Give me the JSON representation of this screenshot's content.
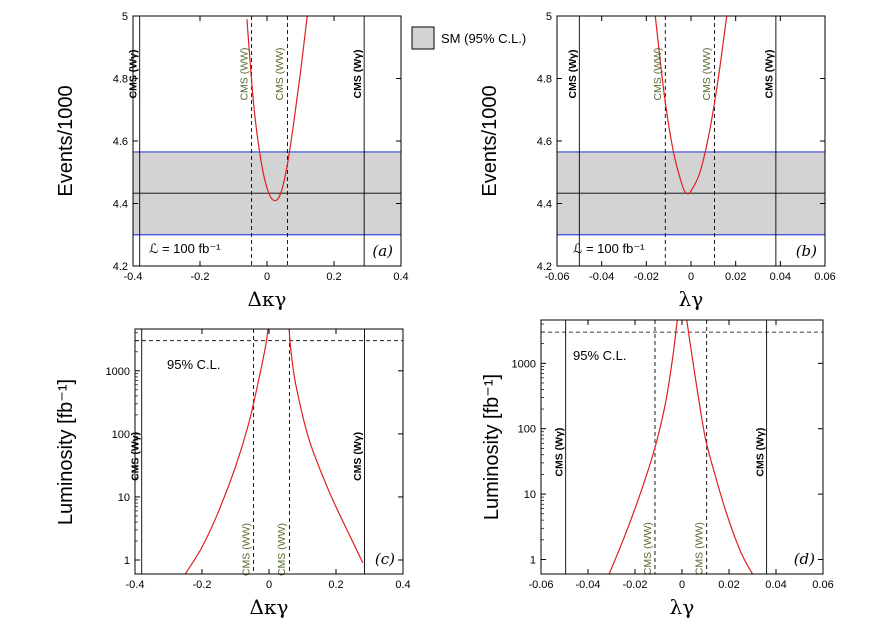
{
  "colors": {
    "band_fill": "#d3d3d3",
    "band_edge": "#3a46d6",
    "curve": "#e0201e",
    "ww_label": "#556b2f"
  },
  "legend": {
    "label": "SM (95% C.L.)"
  },
  "chart_data": [
    {
      "id": "a",
      "type": "line",
      "panel_label": "(a)",
      "xlabel": "Δκγ",
      "ylabel": "Events/1000",
      "xlim": [
        -0.4,
        0.4
      ],
      "ylim": [
        4.2,
        5.0
      ],
      "yscale": "linear",
      "xticks": [
        -0.4,
        -0.2,
        0,
        0.2,
        0.4
      ],
      "xtick_labels": [
        "-0.4",
        "-0.2",
        "0",
        "0.2",
        "0.4"
      ],
      "yticks": [
        4.2,
        4.4,
        4.6,
        4.8,
        5.0
      ],
      "ytick_labels": [
        "4.2",
        "4.4",
        "4.6",
        "4.8",
        "5"
      ],
      "sm_band": {
        "low": 4.3,
        "high": 4.565,
        "central": 4.433
      },
      "luminosity_label": "ℒ = 100 fb⁻¹",
      "series": [
        {
          "name": "events",
          "x": [
            -0.06,
            -0.04,
            -0.02,
            0.0,
            0.02,
            0.04,
            0.06,
            0.08,
            0.1,
            0.12
          ],
          "y": [
            4.99,
            4.72,
            4.55,
            4.45,
            4.41,
            4.43,
            4.52,
            4.66,
            4.82,
            5.0
          ]
        }
      ],
      "limit_lines": [
        {
          "x": -0.38,
          "label": "CMS (Wγ)",
          "kind": "wg"
        },
        {
          "x": -0.046,
          "label": "CMS (WW)",
          "kind": "ww"
        },
        {
          "x": 0.061,
          "label": "CMS (WW)",
          "kind": "ww"
        },
        {
          "x": 0.29,
          "label": "CMS (Wγ)",
          "kind": "wg"
        }
      ]
    },
    {
      "id": "b",
      "type": "line",
      "panel_label": "(b)",
      "xlabel": "λγ",
      "ylabel": "Events/1000",
      "xlim": [
        -0.06,
        0.06
      ],
      "ylim": [
        4.2,
        5.0
      ],
      "yscale": "linear",
      "xticks": [
        -0.06,
        -0.04,
        -0.02,
        0,
        0.02,
        0.04,
        0.06
      ],
      "xtick_labels": [
        "-0.06",
        "-0.04",
        "-0.02",
        "0",
        "0.02",
        "0.04",
        "0.06"
      ],
      "yticks": [
        4.2,
        4.4,
        4.6,
        4.8,
        5.0
      ],
      "ytick_labels": [
        "4.2",
        "4.4",
        "4.6",
        "4.8",
        "5"
      ],
      "sm_band": {
        "low": 4.3,
        "high": 4.565,
        "central": 4.433
      },
      "luminosity_label": "ℒ = 100 fb⁻¹",
      "series": [
        {
          "name": "events",
          "x": [
            -0.016,
            -0.012,
            -0.008,
            -0.004,
            -0.002,
            0.0,
            0.004,
            0.008,
            0.012,
            0.016
          ],
          "y": [
            5.0,
            4.75,
            4.57,
            4.46,
            4.433,
            4.44,
            4.5,
            4.62,
            4.79,
            5.0
          ]
        }
      ],
      "limit_lines": [
        {
          "x": -0.05,
          "label": "CMS (Wγ)",
          "kind": "wg"
        },
        {
          "x": -0.0115,
          "label": "CMS (WW)",
          "kind": "ww"
        },
        {
          "x": 0.0105,
          "label": "CMS (WW)",
          "kind": "ww"
        },
        {
          "x": 0.038,
          "label": "CMS (Wγ)",
          "kind": "wg"
        }
      ]
    },
    {
      "id": "c",
      "type": "line",
      "panel_label": "(c)",
      "xlabel": "Δκγ",
      "ylabel": "Luminosity [fb⁻¹]",
      "xlim": [
        -0.4,
        0.4
      ],
      "ylim": [
        0.6,
        4600
      ],
      "yscale": "log",
      "xticks": [
        -0.4,
        -0.2,
        0,
        0.2,
        0.4
      ],
      "xtick_labels": [
        "-0.4",
        "-0.2",
        "0",
        "0.2",
        "0.4"
      ],
      "yticks": [
        1,
        10,
        100,
        1000
      ],
      "ytick_labels": [
        "1",
        "10",
        "100",
        "1000"
      ],
      "hline": 3000,
      "cl_label": "95% C.L.",
      "series": [
        {
          "name": "left",
          "x": [
            -0.25,
            -0.2,
            -0.15,
            -0.1,
            -0.06,
            -0.03,
            -0.01,
            -0.003
          ],
          "y": [
            0.6,
            1.6,
            6.0,
            30,
            150,
            750,
            2500,
            4600
          ]
        },
        {
          "name": "right",
          "x": [
            0.06,
            0.065,
            0.08,
            0.12,
            0.18,
            0.24,
            0.28
          ],
          "y": [
            4600,
            2200,
            600,
            80,
            12,
            2.5,
            0.9
          ]
        }
      ],
      "limit_lines": [
        {
          "x": -0.38,
          "label": "CMS (Wγ)",
          "kind": "wg"
        },
        {
          "x": -0.046,
          "label": "CMS (WW)",
          "kind": "ww"
        },
        {
          "x": 0.061,
          "label": "CMS (WW)",
          "kind": "ww"
        },
        {
          "x": 0.285,
          "label": "CMS (Wγ)",
          "kind": "wg"
        }
      ]
    },
    {
      "id": "d",
      "type": "line",
      "panel_label": "(d)",
      "xlabel": "λγ",
      "ylabel": "Luminosity [fb⁻¹]",
      "xlim": [
        -0.06,
        0.06
      ],
      "ylim": [
        0.6,
        4600
      ],
      "yscale": "log",
      "xticks": [
        -0.06,
        -0.04,
        -0.02,
        0,
        0.02,
        0.04,
        0.06
      ],
      "xtick_labels": [
        "-0.06",
        "-0.04",
        "-0.02",
        "0",
        "0.02",
        "0.04",
        "0.06"
      ],
      "yticks": [
        1,
        10,
        100,
        1000
      ],
      "ytick_labels": [
        "1",
        "10",
        "100",
        "1000"
      ],
      "hline": 3000,
      "cl_label": "95% C.L.",
      "series": [
        {
          "name": "left",
          "x": [
            -0.031,
            -0.025,
            -0.02,
            -0.015,
            -0.011,
            -0.007,
            -0.004,
            -0.002
          ],
          "y": [
            0.6,
            2.0,
            6.0,
            20,
            60,
            250,
            1200,
            4600
          ]
        },
        {
          "name": "right",
          "x": [
            0.002,
            0.004,
            0.007,
            0.01,
            0.014,
            0.019,
            0.025,
            0.03
          ],
          "y": [
            4600,
            1500,
            300,
            70,
            20,
            5,
            1.3,
            0.6
          ]
        }
      ],
      "limit_lines": [
        {
          "x": -0.0495,
          "label": "CMS (Wγ)",
          "kind": "wg"
        },
        {
          "x": -0.0115,
          "label": "CMS (WW)",
          "kind": "ww"
        },
        {
          "x": 0.0105,
          "label": "CMS (WW)",
          "kind": "ww"
        },
        {
          "x": 0.036,
          "label": "CMS (Wγ)",
          "kind": "wg"
        }
      ]
    }
  ]
}
